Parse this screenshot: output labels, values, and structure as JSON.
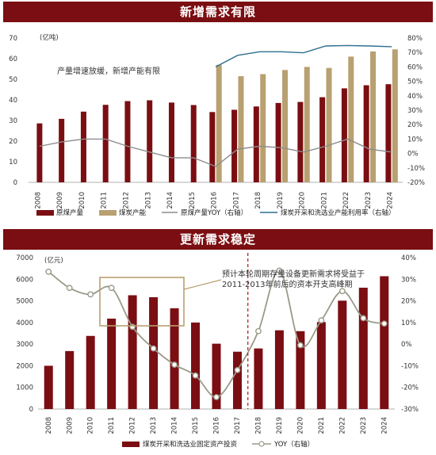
{
  "panels": [
    {
      "title": "新增需求有限"
    },
    {
      "title": "更新需求稳定"
    }
  ],
  "chart_data": [
    {
      "type": "bar",
      "title": "新增需求有限",
      "unit_left": "(亿吨)",
      "annotation": "产量增速放缓，新增产能有限",
      "categories": [
        "2008",
        "2009",
        "2010",
        "2011",
        "2012",
        "2013",
        "2014",
        "2015",
        "2016",
        "2017",
        "2018",
        "2019",
        "2020",
        "2021",
        "2022",
        "2023",
        "2024"
      ],
      "ylim": [
        0,
        70
      ],
      "yticks": [
        0,
        10,
        20,
        30,
        40,
        50,
        60,
        70
      ],
      "y2lim": [
        -20,
        80
      ],
      "y2ticks": [
        -20,
        -10,
        0,
        10,
        20,
        30,
        40,
        50,
        60,
        70,
        80
      ],
      "series": [
        {
          "name": "原煤产量",
          "kind": "bar",
          "color": "#7a0e12",
          "values": [
            28.6,
            30.8,
            34.3,
            37.6,
            39.4,
            39.8,
            38.7,
            37.5,
            34.1,
            35.2,
            36.8,
            38.5,
            39.0,
            41.3,
            45.6,
            47.1,
            47.6
          ]
        },
        {
          "name": "煤炭产能",
          "kind": "bar",
          "color": "#b8a070",
          "values": [
            null,
            null,
            null,
            null,
            null,
            null,
            null,
            null,
            57.0,
            51.5,
            52.5,
            54.5,
            56.0,
            55.5,
            61.0,
            63.5,
            64.5
          ]
        },
        {
          "name": "原煤产量YOY（右轴）",
          "kind": "line",
          "axis": "right",
          "color": "#8c8c8c",
          "values": [
            5,
            8,
            10,
            10,
            5,
            1,
            -3,
            -3,
            -9,
            3,
            5,
            4,
            1,
            5,
            10,
            3,
            1
          ]
        },
        {
          "name": "煤炭开采和洗选业产能利用率（右轴）",
          "kind": "line",
          "axis": "right",
          "color": "#2e6f8e",
          "values": [
            null,
            null,
            null,
            null,
            null,
            null,
            null,
            null,
            60,
            68,
            70.5,
            70.5,
            69.8,
            74.5,
            74.8,
            74.5,
            74.0
          ]
        }
      ],
      "legend_position": "bottom",
      "grid": false
    },
    {
      "type": "bar",
      "title": "更新需求稳定",
      "unit_left": "(亿元)",
      "annotation": [
        "预计本轮周期存量设备更新需求将受益于",
        "2011-2013年前后的资本开支高峰期"
      ],
      "categories": [
        "2008",
        "2009",
        "2010",
        "2011",
        "2012",
        "2013",
        "2014",
        "2015",
        "2016",
        "2017",
        "2018",
        "2019",
        "2020",
        "2021",
        "2022",
        "2023",
        "2024"
      ],
      "ylim": [
        0,
        7000
      ],
      "yticks": [
        0,
        1000,
        2000,
        3000,
        4000,
        5000,
        6000,
        7000
      ],
      "y2lim": [
        -30,
        40
      ],
      "y2ticks": [
        -30,
        -20,
        -10,
        0,
        10,
        20,
        30,
        40
      ],
      "series": [
        {
          "name": "煤炭开采和洗选业固定资产投资",
          "kind": "bar",
          "color": "#7a0e12",
          "values": [
            2000,
            2680,
            3380,
            4180,
            5260,
            5170,
            4660,
            4000,
            3020,
            2650,
            2800,
            3640,
            3600,
            4020,
            5010,
            5610,
            6140
          ]
        },
        {
          "name": "YOY（右轴）",
          "kind": "line",
          "axis": "right",
          "color": "#9a9a8a",
          "values": [
            33.5,
            26,
            23,
            26,
            8,
            -2,
            -9.5,
            -14.5,
            -24.5,
            -12,
            6,
            34,
            -0.5,
            11,
            24.5,
            12,
            9.5
          ]
        }
      ],
      "legend_position": "bottom",
      "grid": false
    }
  ],
  "percent_suffix": "%"
}
